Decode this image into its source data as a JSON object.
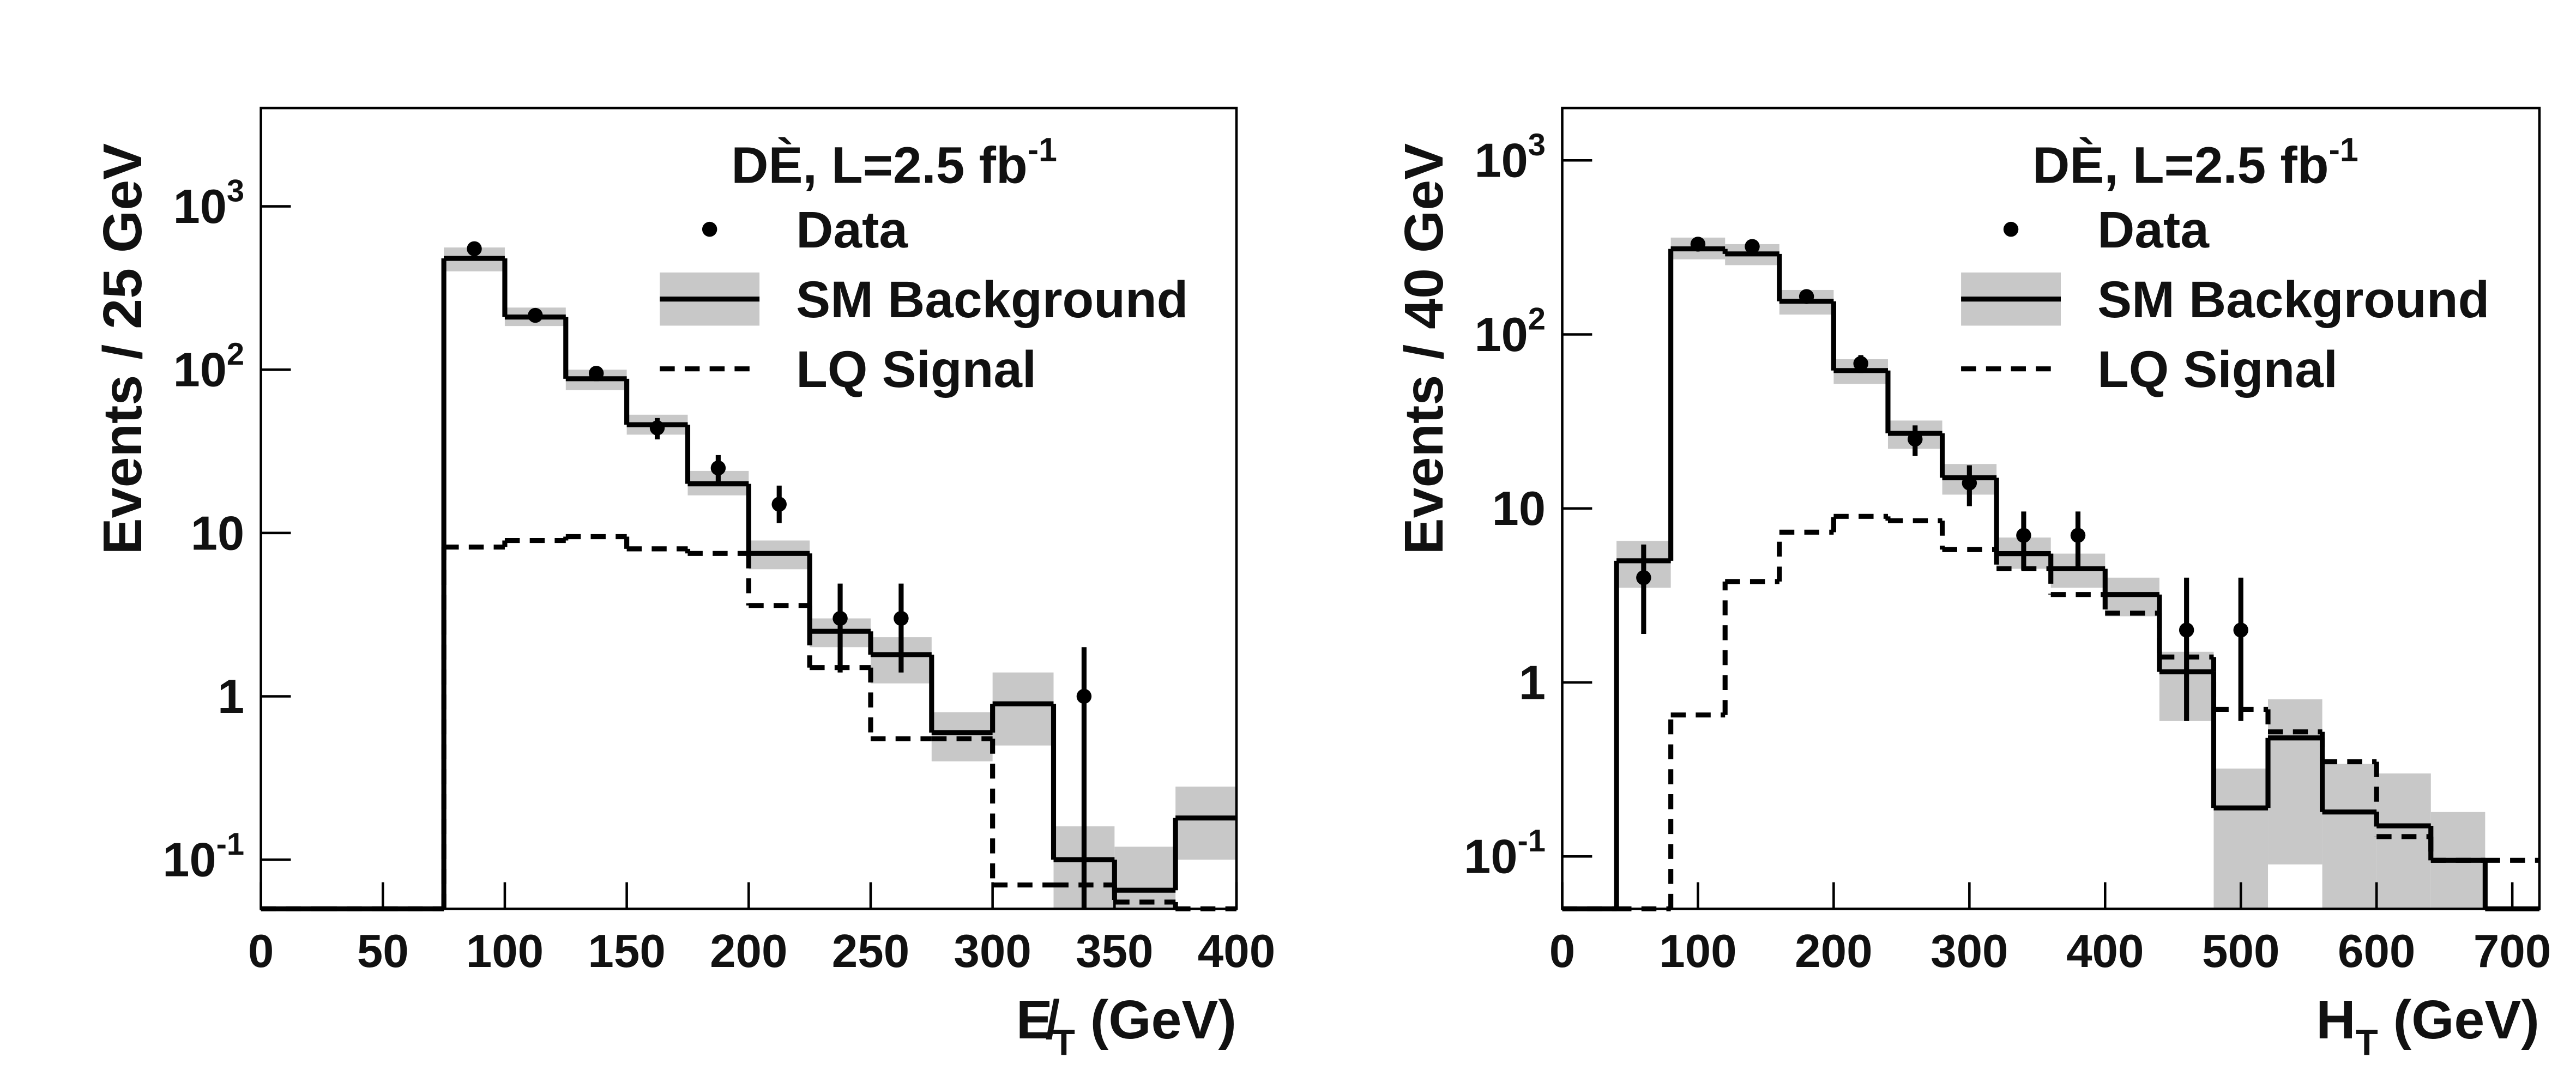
{
  "chart_data": [
    {
      "type": "histogram",
      "log_y": true,
      "legend": "upper right",
      "ylabel": "Events / 25 GeV",
      "xlabel": {
        "main": "E̸",
        "sub": "T",
        "rest": " (GeV)"
      },
      "annotation": {
        "text": "DÈ, L=2.5 fb",
        "sup": "-1"
      },
      "xlim": [
        0,
        400
      ],
      "ylim": [
        0.05,
        4000
      ],
      "xticks": [
        0,
        50,
        100,
        150,
        200,
        250,
        300,
        350,
        400
      ],
      "yticks": [
        {
          "value": 0.1,
          "label": "10",
          "sup": "-1"
        },
        1,
        10,
        {
          "value": 100,
          "label": "10",
          "sup": "2"
        },
        {
          "value": 1000,
          "label": "10",
          "sup": "3"
        }
      ],
      "bins": [
        0,
        25,
        50,
        75,
        100,
        125,
        150,
        175,
        200,
        225,
        250,
        275,
        300,
        325,
        350,
        375,
        400
      ],
      "series": [
        {
          "name": "Data",
          "style": "points",
          "color": "#000000",
          "x": [
            87.5,
            112.5,
            137.5,
            162.5,
            187.5,
            212.5,
            237.5,
            262.5,
            337.5
          ],
          "values": [
            550,
            215,
            95,
            44,
            25,
            15,
            3,
            3,
            1
          ],
          "errors_low": [
            23,
            15,
            10,
            6.6,
            5,
            3.5,
            1.6,
            1.6,
            0.95
          ],
          "errors_high": [
            23,
            15,
            10,
            6.6,
            5,
            4.5,
            1.9,
            1.9,
            1
          ]
        },
        {
          "name": "SM Background",
          "style": "solid",
          "color": "#000000",
          "band_color": "#c8c8c8",
          "values": [
            0,
            0,
            0,
            480,
            210,
            88,
            46,
            20,
            7.5,
            2.5,
            1.8,
            0.6,
            0.9,
            0.1,
            0.065,
            0.18
          ],
          "band_low": [
            null,
            null,
            null,
            400,
            185,
            75,
            40,
            17,
            6,
            2,
            1.2,
            0.4,
            0.5,
            0.05,
            0.05,
            0.1
          ],
          "band_high": [
            null,
            null,
            null,
            560,
            240,
            100,
            53,
            24,
            9,
            3,
            2.3,
            0.8,
            1.4,
            0.16,
            0.12,
            0.28
          ]
        },
        {
          "name": "LQ Signal",
          "style": "dashed",
          "color": "#000000",
          "values": [
            0,
            0,
            0,
            8.2,
            9,
            9.5,
            8,
            7.5,
            3.6,
            1.5,
            0.55,
            0.55,
            0.07,
            0.07,
            0.055,
            0.05
          ]
        }
      ]
    },
    {
      "type": "histogram",
      "log_y": true,
      "legend": "upper right",
      "ylabel": "Events / 40 GeV",
      "xlabel": {
        "main": "H",
        "sub": "T",
        "rest": " (GeV)"
      },
      "annotation": {
        "text": "DÈ, L=2.5 fb",
        "sup": "-1"
      },
      "xlim": [
        0,
        720
      ],
      "ylim": [
        0.05,
        2000
      ],
      "xticks": [
        0,
        100,
        200,
        300,
        400,
        500,
        600,
        700
      ],
      "yticks": [
        {
          "value": 0.1,
          "label": "10",
          "sup": "-1"
        },
        1,
        10,
        {
          "value": 100,
          "label": "10",
          "sup": "2"
        },
        {
          "value": 1000,
          "label": "10",
          "sup": "3"
        }
      ],
      "bins": [
        0,
        40,
        80,
        120,
        160,
        200,
        240,
        280,
        320,
        360,
        400,
        440,
        480,
        520,
        560,
        600,
        640,
        680,
        720
      ],
      "series": [
        {
          "name": "Data",
          "style": "points",
          "color": "#000000",
          "x": [
            60,
            100,
            140,
            180,
            220,
            260,
            300,
            340,
            380,
            460,
            500
          ],
          "values": [
            4,
            330,
            320,
            165,
            68,
            25,
            14,
            7,
            7,
            2,
            2
          ],
          "errors_low": [
            2.1,
            18,
            18,
            13,
            8,
            5,
            3.7,
            2.6,
            2.6,
            1.4,
            1.4
          ],
          "errors_high": [
            2.2,
            18,
            18,
            13,
            8,
            5,
            3.7,
            2.6,
            2.6,
            2,
            2
          ]
        },
        {
          "name": "SM Background",
          "style": "solid",
          "color": "#000000",
          "band_color": "#c8c8c8",
          "values": [
            0,
            5,
            310,
            290,
            155,
            62,
            27,
            15,
            5.5,
            4.5,
            3.2,
            1.15,
            0.19,
            0.48,
            0.18,
            0.15,
            0.095,
            0
          ],
          "band_low": [
            null,
            3.5,
            270,
            250,
            130,
            52,
            22,
            12,
            4.5,
            3.5,
            2.4,
            0.6,
            0.05,
            0.09,
            0.05,
            0.05,
            0.05,
            null
          ],
          "band_high": [
            null,
            6.5,
            360,
            330,
            180,
            72,
            32,
            18,
            6.8,
            5.5,
            4,
            1.5,
            0.32,
            0.8,
            0.34,
            0.3,
            0.18,
            null
          ]
        },
        {
          "name": "LQ Signal",
          "style": "dashed",
          "color": "#000000",
          "values": [
            0,
            0,
            0.65,
            3.8,
            7.3,
            9,
            8.5,
            5.8,
            4.5,
            3.2,
            2.5,
            1.4,
            0.7,
            0.52,
            0.35,
            0.13,
            0.095,
            0.095
          ]
        }
      ]
    }
  ]
}
